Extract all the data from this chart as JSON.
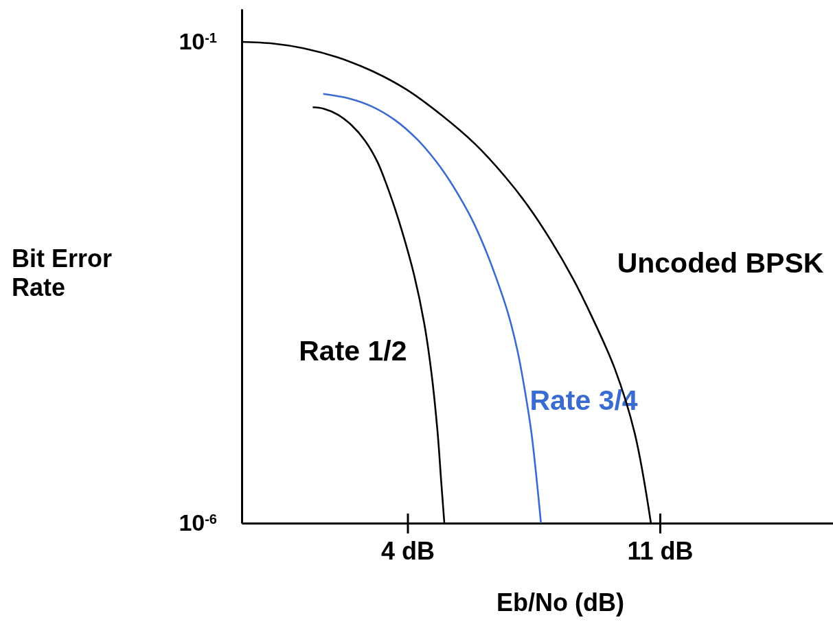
{
  "chart_data": {
    "type": "line",
    "xlabel": "Eb/No (dB)",
    "ylabel": "Bit Error Rate",
    "log": "y",
    "xlim": [
      -0.6,
      15.8
    ],
    "ylim": [
      1e-06,
      0.22
    ],
    "xticks": [
      {
        "value": 4,
        "label": "4 dB"
      },
      {
        "value": 11,
        "label": "11 dB"
      }
    ],
    "yticks": [
      {
        "value": 0.1,
        "label": "10$^{-1}$"
      },
      {
        "value": 1e-06,
        "label": "10$^{-6}$"
      }
    ],
    "series": [
      {
        "name": "Rate 1/2",
        "color": "#000000",
        "x": [
          1.37,
          1.68,
          2.06,
          2.44,
          2.82,
          3.16,
          3.5,
          3.84,
          4.18,
          4.46,
          4.66,
          4.83,
          4.93,
          5.02
        ],
        "values": [
          0.0209,
          0.0202,
          0.0176,
          0.0137,
          0.0094,
          0.0057,
          0.0027,
          0.0011,
          0.00038,
          0.00012,
          3.7e-05,
          9e-06,
          2.8e-06,
          1e-06
        ]
      },
      {
        "name": "Rate 3/4",
        "color": "#3a6bd1",
        "x": [
          1.66,
          2.38,
          3.01,
          3.65,
          4.28,
          4.75,
          5.09,
          5.43,
          5.77,
          6.11,
          6.45,
          6.79,
          7.06,
          7.26,
          7.43,
          7.57,
          7.7
        ],
        "values": [
          0.0288,
          0.0258,
          0.0213,
          0.0154,
          0.0096,
          0.006,
          0.004,
          0.0025,
          0.00147,
          0.00077,
          0.00036,
          0.00015,
          5.9e-05,
          2.3e-05,
          9e-06,
          3.1e-06,
          1e-06
        ]
      },
      {
        "name": "Uncoded BPSK",
        "color": "#000000",
        "x": [
          -0.6,
          0.28,
          1.11,
          2.06,
          3.01,
          3.97,
          4.92,
          5.87,
          6.7,
          7.33,
          7.97,
          8.6,
          9.11,
          9.75,
          10.3,
          10.75
        ],
        "values": [
          0.1,
          0.096,
          0.086,
          0.069,
          0.05,
          0.032,
          0.0176,
          0.0087,
          0.004,
          0.002,
          0.00087,
          0.00034,
          0.00014,
          4e-05,
          8.6e-06,
          1e-06
        ]
      }
    ]
  }
}
